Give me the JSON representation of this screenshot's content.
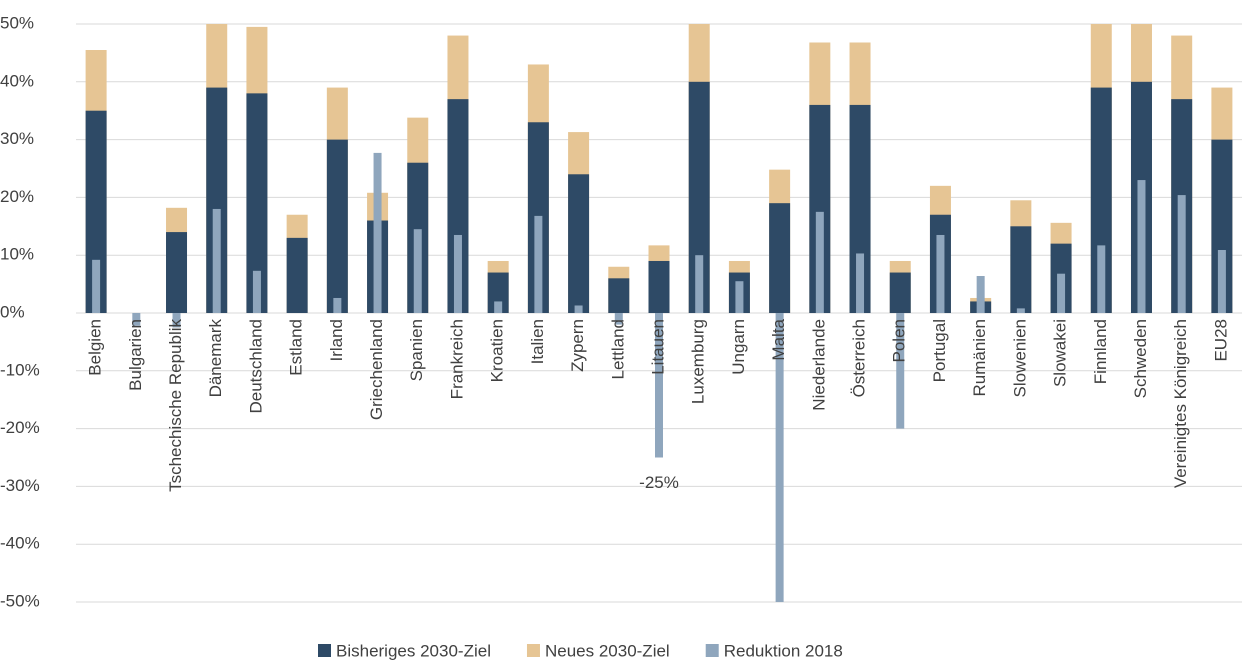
{
  "chart_data": {
    "type": "bar",
    "categories": [
      "Belgien",
      "Bulgarien",
      "Tschechische Republik",
      "Dänemark",
      "Deutschland",
      "Estland",
      "Irland",
      "Griechenland",
      "Spanien",
      "Frankreich",
      "Kroatien",
      "Italien",
      "Zypern",
      "Lettland",
      "Litauen",
      "Luxemburg",
      "Ungarn",
      "Malta",
      "Niederlande",
      "Österreich",
      "Polen",
      "Portugal",
      "Rumänien",
      "Slowenien",
      "Slowakei",
      "Finnland",
      "Schweden",
      "Vereinigtes Königreich",
      "EU28"
    ],
    "series": [
      {
        "name": "Bisheriges 2030-Ziel",
        "color": "#2e4a66",
        "values": [
          35,
          0,
          14,
          39,
          38,
          13,
          30,
          16,
          26,
          37,
          7,
          33,
          24,
          6,
          9,
          40,
          7,
          19,
          36,
          36,
          7,
          17,
          2,
          15,
          12,
          39,
          40,
          37,
          30
        ]
      },
      {
        "name": "Neues 2030-Ziel",
        "color": "#e6c594",
        "values": [
          45.5,
          0,
          18.2,
          50,
          49.5,
          17,
          39,
          20.8,
          33.8,
          48,
          9,
          43,
          31.3,
          8,
          11.7,
          50,
          9,
          24.8,
          46.8,
          46.8,
          9,
          22,
          2.6,
          19.5,
          15.6,
          50,
          50,
          48,
          39
        ]
      },
      {
        "name": "Reduktion 2018",
        "color": "#8fa6bd",
        "values": [
          9.2,
          -2.2,
          -2.5,
          18,
          7.3,
          0,
          2.6,
          27.7,
          14.5,
          13.5,
          2,
          16.8,
          1.3,
          -2,
          -25,
          10,
          5.5,
          -50,
          17.5,
          10.3,
          -20,
          13.5,
          6.4,
          0.8,
          6.8,
          11.7,
          23,
          20.4,
          10.9
        ],
        "value_labels": [
          null,
          null,
          null,
          null,
          null,
          null,
          null,
          null,
          null,
          null,
          null,
          null,
          null,
          null,
          "-25%",
          null,
          null,
          null,
          null,
          null,
          null,
          null,
          null,
          null,
          null,
          null,
          null,
          null,
          null
        ]
      }
    ],
    "ylim": [
      -50,
      50
    ],
    "yticks": [
      {
        "value": 50,
        "label": "50%"
      },
      {
        "value": 40,
        "label": "40%"
      },
      {
        "value": 30,
        "label": "30%"
      },
      {
        "value": 20,
        "label": "20%"
      },
      {
        "value": 10,
        "label": "10%"
      },
      {
        "value": 0,
        "label": "0%"
      },
      {
        "value": -10,
        "label": "-10%"
      },
      {
        "value": -20,
        "label": "-20%"
      },
      {
        "value": -30,
        "label": "-30%"
      },
      {
        "value": -40,
        "label": "-40%"
      },
      {
        "value": -50,
        "label": "-50%"
      }
    ],
    "grid": true,
    "legend": "bottom"
  }
}
